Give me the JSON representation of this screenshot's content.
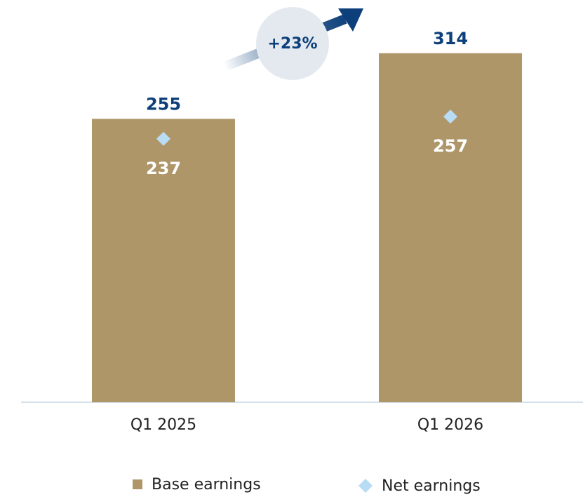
{
  "chart_data": {
    "type": "bar",
    "categories": [
      "Q1 2025",
      "Q1 2026"
    ],
    "series": [
      {
        "name": "Base earnings",
        "color": "#ae9669",
        "values": [
          255,
          314
        ]
      },
      {
        "name": "Net earnings",
        "color": "#b9dcf5",
        "values": [
          237,
          257
        ]
      }
    ],
    "ylim": [
      0,
      360
    ],
    "annotation": "+23%"
  }
}
